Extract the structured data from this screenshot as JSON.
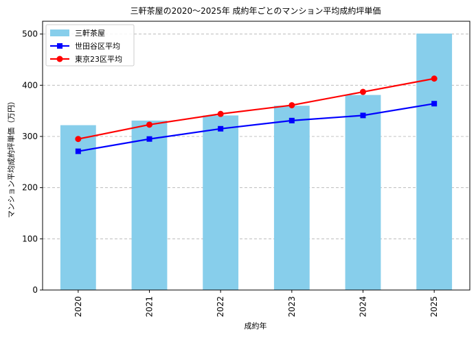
{
  "chart_data": {
    "type": "bar",
    "title": "三軒茶屋の2020〜2025年 成約年ごとのマンション平均成約坪単価",
    "xlabel": "成約年",
    "ylabel": "マンション平均成約坪単価（万円）",
    "categories": [
      "2020",
      "2021",
      "2022",
      "2023",
      "2024",
      "2025"
    ],
    "ylim": [
      0,
      525
    ],
    "yticks": [
      "0",
      "100",
      "200",
      "300",
      "400",
      "500"
    ],
    "grid": "horizontal dashed",
    "legend_position": "top-left",
    "series": [
      {
        "name": "三軒茶屋",
        "type": "bar",
        "color": "#87ceeb",
        "values": [
          322,
          331,
          341,
          360,
          381,
          501
        ]
      },
      {
        "name": "世田谷区平均",
        "type": "line",
        "marker": "square",
        "color": "#0000ff",
        "values": [
          271,
          295,
          315,
          331,
          341,
          364
        ]
      },
      {
        "name": "東京23区平均",
        "type": "line",
        "marker": "circle",
        "color": "#ff0000",
        "values": [
          295,
          323,
          344,
          361,
          387,
          413
        ]
      }
    ]
  }
}
